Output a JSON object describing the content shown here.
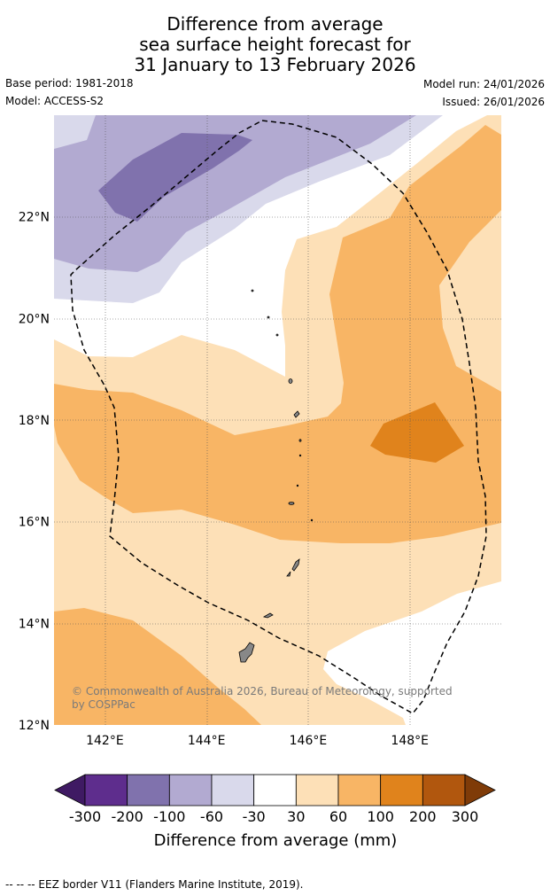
{
  "title": {
    "line1": "Difference from average",
    "line2": "sea surface height forecast for",
    "line3": "31 January to 13 February 2026"
  },
  "meta": {
    "base_period": "Base period: 1981-2018",
    "model": "Model: ACCESS-S2",
    "model_run": "Model run: 24/01/2026",
    "issued": "Issued: 26/01/2026"
  },
  "map": {
    "lon_range": [
      141,
      149.8
    ],
    "lat_range": [
      12,
      24
    ],
    "lat_ticks": [
      {
        "value": 22,
        "label": "22°N"
      },
      {
        "value": 20,
        "label": "20°N"
      },
      {
        "value": 18,
        "label": "18°N"
      },
      {
        "value": 16,
        "label": "16°N"
      },
      {
        "value": 14,
        "label": "14°N"
      },
      {
        "value": 12,
        "label": "12°N"
      }
    ],
    "lon_ticks": [
      {
        "value": 142,
        "label": "142°E"
      },
      {
        "value": 144,
        "label": "144°E"
      },
      {
        "value": 146,
        "label": "146°E"
      },
      {
        "value": 148,
        "label": "148°E"
      }
    ],
    "gridlines": true,
    "copyright_line1": "© Commonwealth of Australia 2026, Bureau of Meteorology, supported",
    "copyright_line2": "by COSPPac"
  },
  "colorbar": {
    "labels": [
      "-300",
      "-200",
      "-100",
      "-60",
      "-30",
      "30",
      "60",
      "100",
      "200",
      "300"
    ],
    "colors": [
      "#3f1a63",
      "#5e2d8d",
      "#8072ad",
      "#b2aad1",
      "#d9d9eb",
      "#ffffff",
      "#fde0b7",
      "#f8b565",
      "#e0831c",
      "#b1570e",
      "#7f3b08"
    ],
    "title": "Difference from average (mm)"
  },
  "footer": "--  --  -- EEZ border V11 (Flanders Marine Institute, 2019)."
}
